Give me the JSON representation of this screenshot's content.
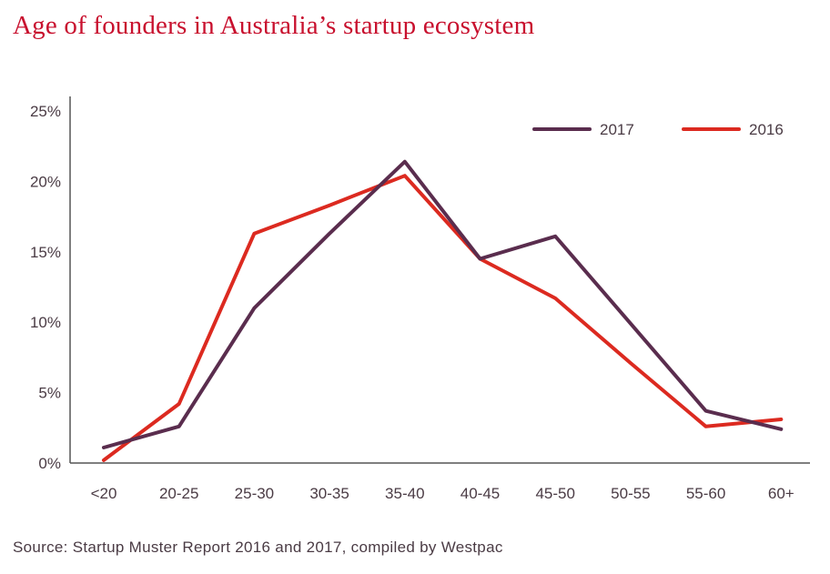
{
  "title": "Age of founders in Australia’s startup ecosystem",
  "source": "Source: Startup Muster Report 2016 and 2017, compiled by Westpac",
  "colors": {
    "title": "#c8102e",
    "series_2017": "#5a2d4e",
    "series_2016": "#dc2a20",
    "axis": "#555555",
    "text": "#4a3b44"
  },
  "chart_data": {
    "type": "line",
    "categories": [
      "<20",
      "20-25",
      "25-30",
      "30-35",
      "35-40",
      "40-45",
      "45-50",
      "50-55",
      "55-60",
      "60+"
    ],
    "series": [
      {
        "name": "2017",
        "values": [
          1.1,
          2.6,
          11.0,
          16.3,
          21.4,
          14.5,
          16.1,
          9.9,
          3.7,
          2.4
        ]
      },
      {
        "name": "2016",
        "values": [
          0.2,
          4.2,
          16.3,
          18.3,
          20.4,
          14.5,
          11.7,
          7.1,
          2.6,
          3.1
        ]
      }
    ],
    "ylim": [
      0,
      25
    ],
    "yticks": [
      0,
      5,
      10,
      15,
      20,
      25
    ],
    "ytick_labels": [
      "0%",
      "5%",
      "10%",
      "15%",
      "20%",
      "25%"
    ],
    "legend_position": "top-right",
    "grid": false
  }
}
